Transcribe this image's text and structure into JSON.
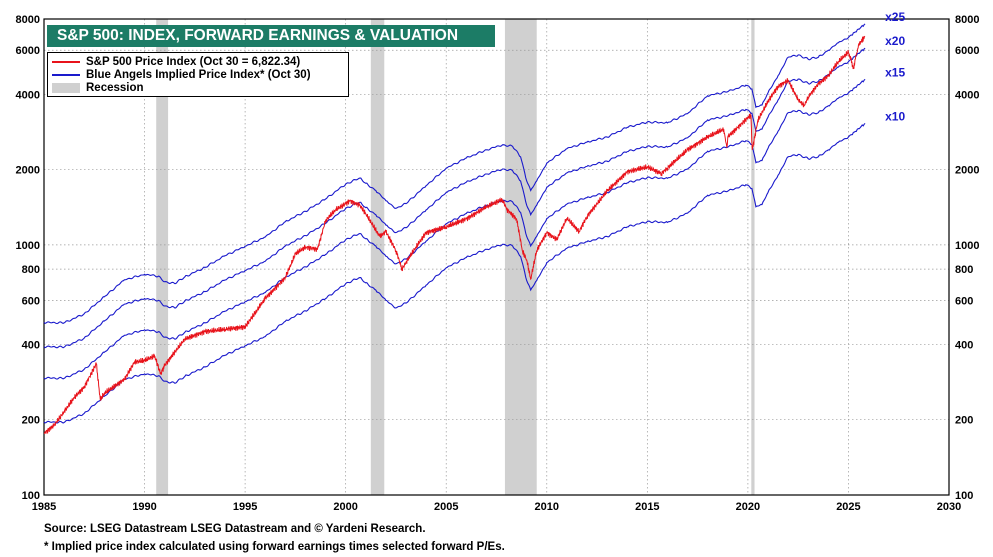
{
  "chart_data": {
    "type": "line",
    "title": "S&P 500: INDEX, FORWARD EARNINGS & VALUATION",
    "y_scale": "log",
    "xlim": [
      1985,
      2030
    ],
    "ylim": [
      100,
      8000
    ],
    "x_ticks": [
      "1985",
      "1990",
      "1995",
      "2000",
      "2005",
      "2010",
      "2015",
      "2020",
      "2025",
      "2030"
    ],
    "y_ticks": [
      "100",
      "200",
      "400",
      "600",
      "800",
      "1000",
      "2000",
      "4000",
      "6000",
      "8000"
    ],
    "grid": true,
    "legend_placement": "top-left",
    "legend": [
      {
        "label": "S&P 500 Price Index (Oct 30 = 6,822.34)",
        "color": "#e8131b"
      },
      {
        "label": "Blue Angels Implied Price Index* (Oct 30)",
        "color": "#1a1acc"
      },
      {
        "label": "Recession",
        "color": "#d0d0d0"
      }
    ],
    "recessions": [
      [
        1990.58,
        1991.17
      ],
      [
        2001.25,
        2001.92
      ],
      [
        2007.92,
        2009.5
      ],
      [
        2020.17,
        2020.33
      ]
    ],
    "forward_earnings_x10": {
      "x": [
        1985,
        1986,
        1987,
        1988,
        1989,
        1990,
        1990.7,
        1991,
        1991.5,
        1992,
        1993,
        1994,
        1995,
        1996,
        1997,
        1998,
        1999,
        2000,
        2000.7,
        2001,
        2001.5,
        2002,
        2002.5,
        2003,
        2004,
        2005,
        2006,
        2007,
        2007.8,
        2008.3,
        2008.7,
        2009.0,
        2009.2,
        2009.5,
        2010,
        2011,
        2012,
        2013,
        2014,
        2015,
        2016,
        2017,
        2018,
        2019,
        2019.9,
        2020.2,
        2020.4,
        2020.7,
        2021,
        2021.5,
        2022,
        2022.5,
        2023,
        2023.5,
        2024,
        2024.5,
        2025,
        2025.83
      ],
      "y": [
        196,
        195,
        212,
        248,
        290,
        305,
        300,
        285,
        280,
        298,
        325,
        362,
        395,
        430,
        495,
        545,
        610,
        700,
        740,
        705,
        660,
        600,
        560,
        585,
        690,
        810,
        890,
        960,
        1005,
        990,
        900,
        720,
        660,
        720,
        850,
        970,
        1030,
        1080,
        1180,
        1240,
        1230,
        1340,
        1580,
        1640,
        1740,
        1680,
        1420,
        1450,
        1620,
        1900,
        2250,
        2300,
        2210,
        2250,
        2400,
        2570,
        2700,
        3060
      ]
    },
    "series": [
      {
        "name": "x25",
        "multiple": 25
      },
      {
        "name": "x20",
        "multiple": 20
      },
      {
        "name": "x15",
        "multiple": 15
      },
      {
        "name": "x10",
        "multiple": 10
      },
      {
        "name": "S&P 500 Price Index (Oct 30 = 6,822.34)",
        "x": [
          1985,
          1985.5,
          1986,
          1986.5,
          1987,
          1987.6,
          1987.8,
          1988,
          1989,
          1989.5,
          1990,
          1990.5,
          1990.8,
          1991,
          1992,
          1993,
          1994,
          1995,
          1996,
          1997,
          1997.5,
          1998,
          1998.6,
          1999,
          1999.5,
          2000,
          2000.2,
          2000.7,
          2001,
          2001.7,
          2002,
          2002.5,
          2002.8,
          2003,
          2003.5,
          2004,
          2005,
          2006,
          2007,
          2007.8,
          2008,
          2008.5,
          2008.8,
          2009,
          2009.2,
          2009.5,
          2010,
          2010.5,
          2011,
          2011.6,
          2012,
          2013,
          2014,
          2015,
          2015.7,
          2016,
          2017,
          2018,
          2018.8,
          2018.95,
          2019,
          2019.5,
          2020,
          2020.15,
          2020.22,
          2020.5,
          2021,
          2021.5,
          2022,
          2022.5,
          2022.8,
          2023,
          2023.5,
          2024,
          2024.5,
          2025,
          2025.25,
          2025.5,
          2025.83
        ],
        "y": [
          176,
          190,
          215,
          245,
          270,
          335,
          240,
          255,
          290,
          340,
          345,
          360,
          305,
          330,
          420,
          450,
          460,
          470,
          610,
          740,
          920,
          980,
          960,
          1250,
          1380,
          1460,
          1500,
          1440,
          1330,
          1080,
          1130,
          950,
          800,
          850,
          980,
          1120,
          1180,
          1270,
          1420,
          1520,
          1390,
          1270,
          940,
          870,
          730,
          950,
          1120,
          1050,
          1280,
          1130,
          1300,
          1640,
          1960,
          2050,
          1930,
          2030,
          2400,
          2700,
          2900,
          2450,
          2700,
          2950,
          3230,
          3300,
          2400,
          3150,
          3750,
          4300,
          4550,
          3800,
          3600,
          3900,
          4400,
          4750,
          5400,
          5900,
          5100,
          6300,
          6822.34
        ]
      }
    ],
    "multiplier_labels": [
      "x25",
      "x20",
      "x15",
      "x10"
    ]
  },
  "footnotes": {
    "source": "Source: LSEG Datastream LSEG Datastream and © Yardeni Research.",
    "note": "* Implied price index calculated using forward earnings times selected forward P/Es."
  }
}
